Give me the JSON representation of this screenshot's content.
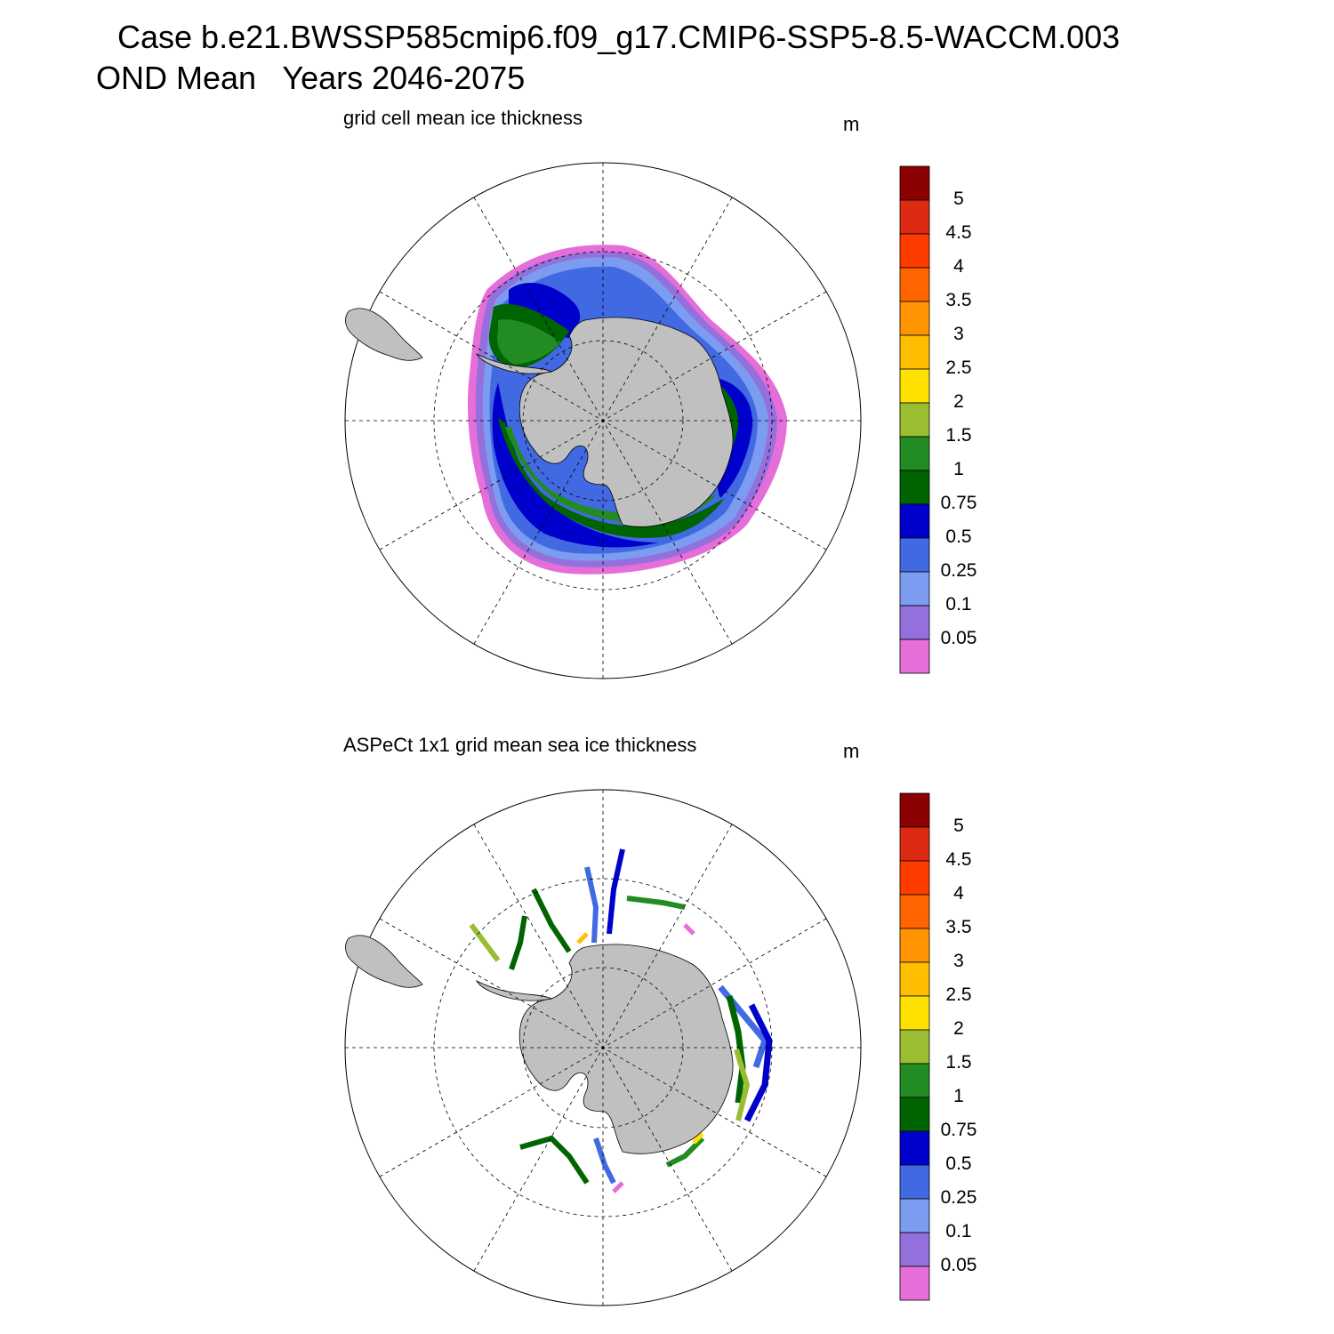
{
  "header": {
    "title_line1": "Case b.e21.BWSSP585cmip6.f09_g17.CMIP6-SSP5-8.5-WACCM.003",
    "title_line2": "OND Mean   Years 2046-2075"
  },
  "panels": [
    {
      "title": "grid cell mean ice thickness",
      "unit": "m"
    },
    {
      "title": "ASPeCt 1x1 grid mean sea ice thickness",
      "unit": "m"
    }
  ],
  "colorbar": {
    "levels": [
      "5",
      "4.5",
      "4",
      "3.5",
      "3",
      "2.5",
      "2",
      "1.5",
      "1",
      "0.75",
      "0.5",
      "0.25",
      "0.1",
      "0.05"
    ],
    "colors": [
      "#8B0000",
      "#DD2A13",
      "#FF3C00",
      "#FF6400",
      "#FF9400",
      "#FFBF00",
      "#FFE100",
      "#9ABD32",
      "#228B22",
      "#006400",
      "#0000CD",
      "#4169E1",
      "#7B9CF0",
      "#9370DB",
      "#E56ED8"
    ]
  },
  "map": {
    "land_color": "#C0C0C0",
    "projection": "south-polar-stereographic"
  }
}
